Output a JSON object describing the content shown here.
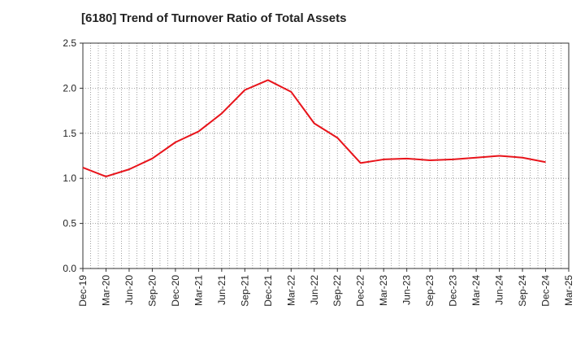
{
  "chart_data": {
    "type": "line",
    "title": "[6180]  Trend of Turnover Ratio of Total Assets",
    "xlabel": "",
    "ylabel": "",
    "ylim": [
      0,
      2.5
    ],
    "yticks": [
      "0.0",
      "0.5",
      "1.0",
      "1.5",
      "2.0",
      "2.5"
    ],
    "xticks": [
      "Dec-19",
      "Mar-20",
      "Jun-20",
      "Sep-20",
      "Dec-20",
      "Mar-21",
      "Jun-21",
      "Sep-21",
      "Dec-21",
      "Mar-22",
      "Jun-22",
      "Sep-22",
      "Dec-22",
      "Mar-23",
      "Jun-23",
      "Sep-23",
      "Dec-23",
      "Mar-24",
      "Jun-24",
      "Sep-24",
      "Dec-24",
      "Mar-25"
    ],
    "grid": true,
    "series": [
      {
        "color": "#e8141b",
        "x": [
          "Dec-19",
          "Mar-20",
          "Jun-20",
          "Sep-20",
          "Dec-20",
          "Mar-21",
          "Jun-21",
          "Sep-21",
          "Dec-21",
          "Mar-22",
          "Jun-22",
          "Sep-22",
          "Dec-22",
          "Mar-23",
          "Jun-23",
          "Sep-23",
          "Dec-23",
          "Mar-24",
          "Jun-24",
          "Sep-24",
          "Dec-24"
        ],
        "values": [
          1.12,
          1.02,
          1.1,
          1.22,
          1.4,
          1.52,
          1.72,
          1.98,
          2.09,
          1.96,
          1.61,
          1.45,
          1.17,
          1.21,
          1.22,
          1.2,
          1.21,
          1.23,
          1.25,
          1.23,
          1.18
        ]
      }
    ]
  }
}
